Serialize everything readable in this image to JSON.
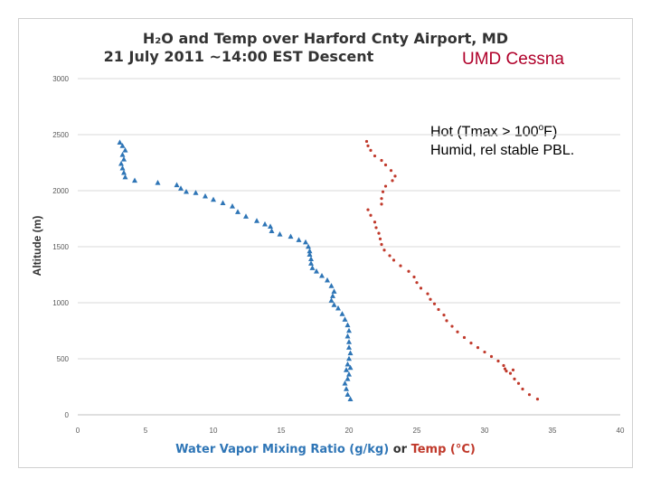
{
  "title": {
    "line1": "H₂O and Temp over Harford Cnty Airport, MD",
    "line2": "21 July 2011  ~14:00 EST Descent"
  },
  "overlay_label": "UMD Cessna",
  "note": {
    "line1_pre": "Hot (Tmax > 100",
    "line1_sup": "o",
    "line1_post": "F)",
    "line2": "Humid, rel stable PBL."
  },
  "xlabel": {
    "part1": "Water Vapor Mixing Ratio (g/kg)",
    "part2": " or ",
    "part3": "Temp (°C)"
  },
  "colors": {
    "water_series": "#2e75b6",
    "temp_series": "#c0392b",
    "grid": "#d9d9d9",
    "overlay": "#b0002a"
  },
  "chart_data": {
    "type": "scatter",
    "ylabel": "Altitude (m)",
    "xlim": [
      0,
      40
    ],
    "ylim": [
      0,
      3000
    ],
    "x_ticks": [
      "0",
      "5",
      "10",
      "15",
      "20",
      "25",
      "30",
      "35",
      "40"
    ],
    "y_ticks": [
      "0",
      "500",
      "1000",
      "1500",
      "2000",
      "2500",
      "3000"
    ],
    "grid": "horizontal",
    "series": [
      {
        "marker": "triangle",
        "color": "#2e75b6",
        "points": [
          [
            20.1,
            140
          ],
          [
            19.9,
            180
          ],
          [
            19.8,
            230
          ],
          [
            19.7,
            280
          ],
          [
            19.9,
            320
          ],
          [
            20.0,
            360
          ],
          [
            19.8,
            400
          ],
          [
            20.1,
            420
          ],
          [
            19.9,
            450
          ],
          [
            20.0,
            500
          ],
          [
            20.1,
            550
          ],
          [
            20.0,
            600
          ],
          [
            20.0,
            650
          ],
          [
            19.9,
            700
          ],
          [
            20.0,
            750
          ],
          [
            19.9,
            800
          ],
          [
            19.7,
            850
          ],
          [
            19.5,
            900
          ],
          [
            19.2,
            950
          ],
          [
            18.9,
            980
          ],
          [
            18.7,
            1020
          ],
          [
            18.8,
            1060
          ],
          [
            18.9,
            1100
          ],
          [
            18.7,
            1150
          ],
          [
            18.4,
            1200
          ],
          [
            18.0,
            1240
          ],
          [
            17.6,
            1280
          ],
          [
            17.3,
            1310
          ],
          [
            17.2,
            1350
          ],
          [
            17.2,
            1390
          ],
          [
            17.1,
            1430
          ],
          [
            17.1,
            1460
          ],
          [
            17.0,
            1500
          ],
          [
            16.8,
            1540
          ],
          [
            16.3,
            1560
          ],
          [
            15.7,
            1590
          ],
          [
            14.9,
            1610
          ],
          [
            14.3,
            1640
          ],
          [
            14.2,
            1680
          ],
          [
            13.8,
            1700
          ],
          [
            13.2,
            1730
          ],
          [
            12.4,
            1770
          ],
          [
            11.8,
            1810
          ],
          [
            11.4,
            1860
          ],
          [
            10.7,
            1890
          ],
          [
            10.0,
            1920
          ],
          [
            9.4,
            1950
          ],
          [
            8.7,
            1980
          ],
          [
            8.0,
            1990
          ],
          [
            7.6,
            2020
          ],
          [
            7.3,
            2050
          ],
          [
            5.9,
            2070
          ],
          [
            4.2,
            2090
          ],
          [
            3.5,
            2120
          ],
          [
            3.4,
            2160
          ],
          [
            3.3,
            2200
          ],
          [
            3.2,
            2240
          ],
          [
            3.4,
            2280
          ],
          [
            3.3,
            2320
          ],
          [
            3.5,
            2360
          ],
          [
            3.3,
            2400
          ],
          [
            3.1,
            2430
          ]
        ]
      },
      {
        "marker": "dot",
        "color": "#c0392b",
        "points": [
          [
            33.9,
            140
          ],
          [
            33.3,
            180
          ],
          [
            32.8,
            230
          ],
          [
            32.5,
            280
          ],
          [
            32.2,
            320
          ],
          [
            31.9,
            370
          ],
          [
            32.1,
            400
          ],
          [
            31.5,
            410
          ],
          [
            31.6,
            390
          ],
          [
            31.4,
            440
          ],
          [
            31.0,
            480
          ],
          [
            30.5,
            520
          ],
          [
            30.0,
            560
          ],
          [
            29.5,
            600
          ],
          [
            29.0,
            640
          ],
          [
            28.5,
            690
          ],
          [
            28.0,
            740
          ],
          [
            27.6,
            790
          ],
          [
            27.2,
            840
          ],
          [
            27.0,
            890
          ],
          [
            26.6,
            940
          ],
          [
            26.3,
            990
          ],
          [
            26.0,
            1030
          ],
          [
            25.8,
            1080
          ],
          [
            25.3,
            1130
          ],
          [
            25.0,
            1180
          ],
          [
            24.8,
            1230
          ],
          [
            24.4,
            1280
          ],
          [
            23.8,
            1330
          ],
          [
            23.3,
            1380
          ],
          [
            23.0,
            1420
          ],
          [
            22.6,
            1470
          ],
          [
            22.4,
            1520
          ],
          [
            22.3,
            1570
          ],
          [
            22.2,
            1620
          ],
          [
            22.0,
            1670
          ],
          [
            21.9,
            1720
          ],
          [
            21.6,
            1780
          ],
          [
            21.4,
            1830
          ],
          [
            22.4,
            1880
          ],
          [
            22.4,
            1930
          ],
          [
            22.5,
            1990
          ],
          [
            22.7,
            2040
          ],
          [
            23.2,
            2090
          ],
          [
            23.4,
            2130
          ],
          [
            23.1,
            2180
          ],
          [
            22.7,
            2230
          ],
          [
            22.4,
            2270
          ],
          [
            21.9,
            2310
          ],
          [
            21.6,
            2360
          ],
          [
            21.4,
            2400
          ],
          [
            21.3,
            2440
          ]
        ]
      }
    ]
  }
}
